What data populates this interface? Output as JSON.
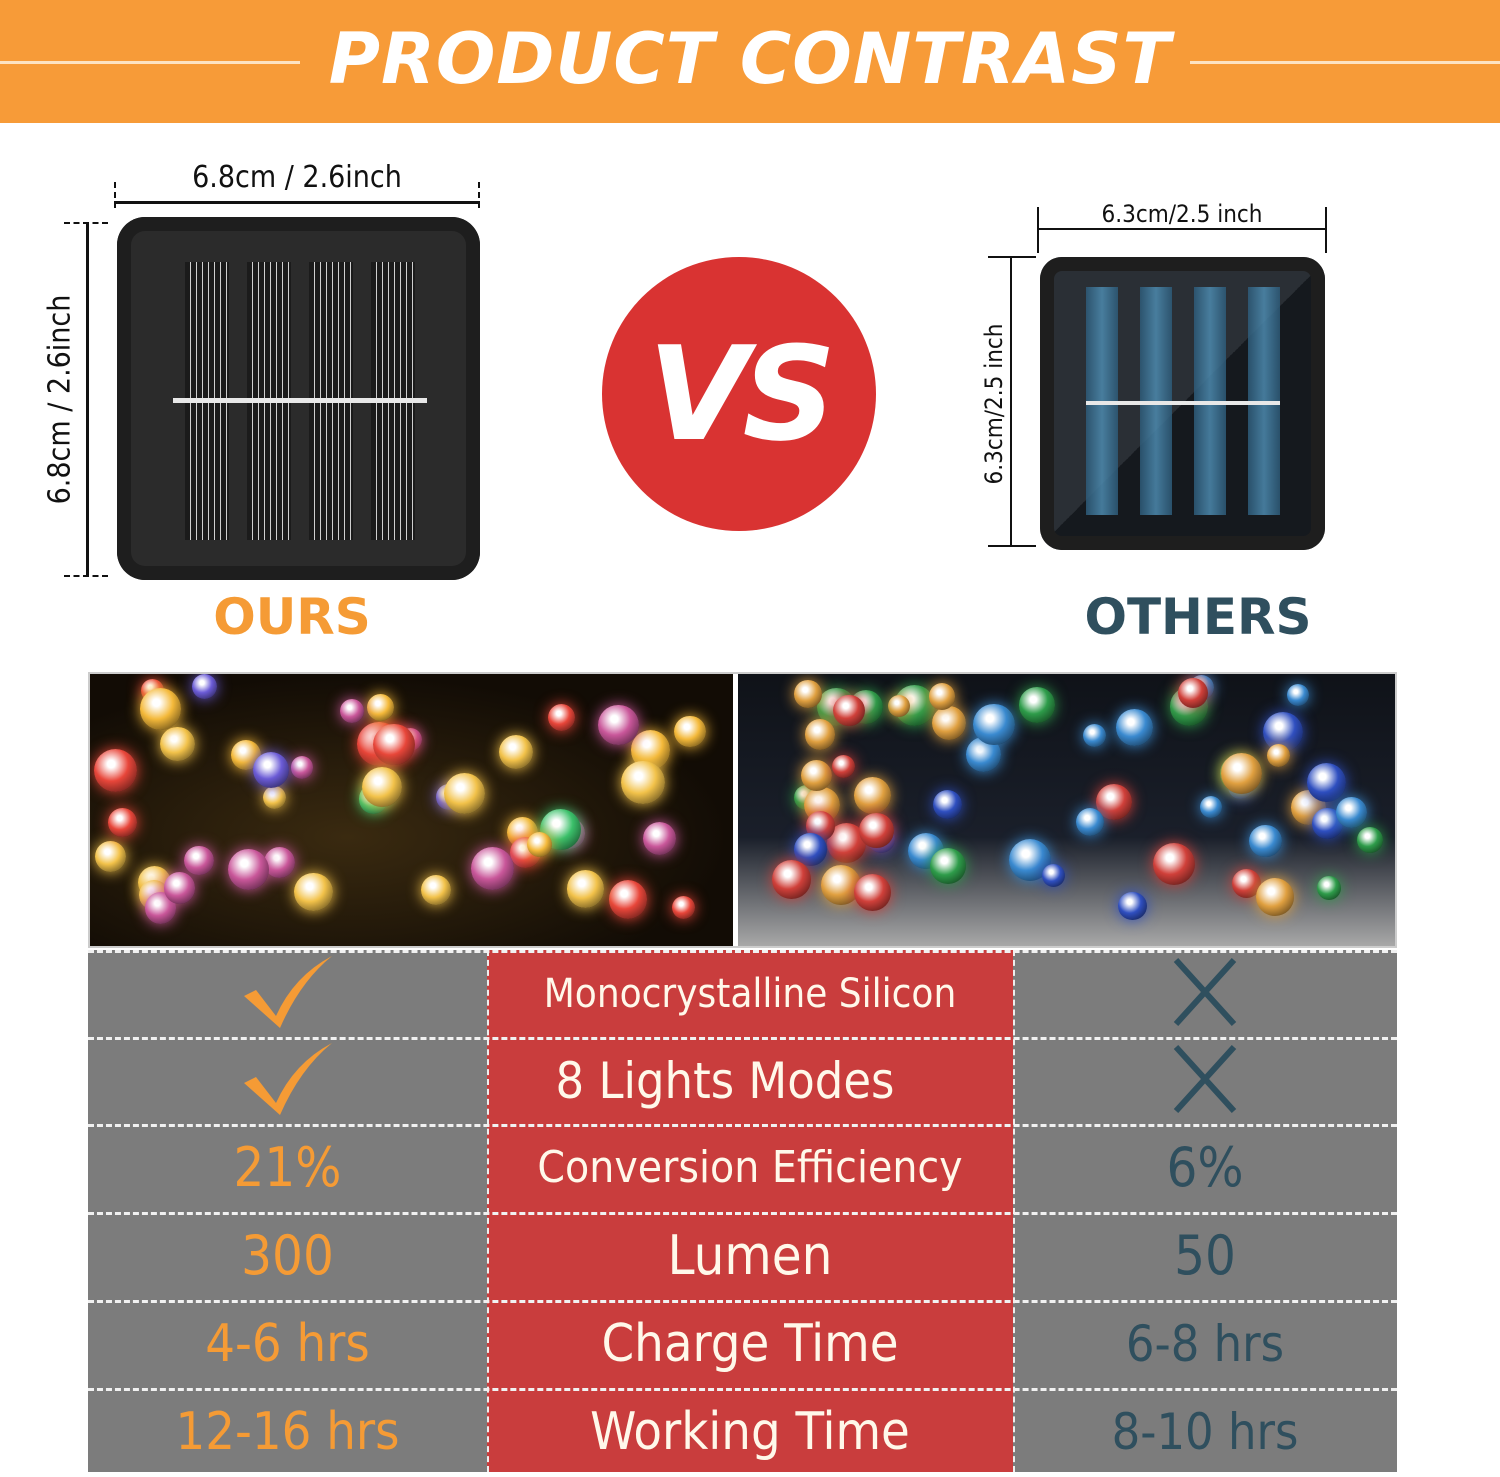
{
  "header": {
    "title": "PRODUCT CONTRAST"
  },
  "ours": {
    "label": "OURS",
    "width_dimension": "6.8cm / 2.6inch",
    "height_dimension": "6.8cm / 2.6inch"
  },
  "vs": "VS",
  "others": {
    "label": "OTHERS",
    "width_dimension": "6.3cm/2.5 inch",
    "height_dimension": "6.3cm/2.5 inch"
  },
  "colors": {
    "accent_orange": "#f79b38",
    "vs_red": "#d93332",
    "others_teal": "#2f4f5e",
    "table_gray": "#7c7c7c",
    "table_red": "#c93d3d"
  },
  "table": {
    "rows": [
      {
        "ours": "",
        "ours_icon": "check-icon",
        "feature": "Monocrystalline Silicon",
        "others": "",
        "others_icon": "x-icon"
      },
      {
        "ours": "",
        "ours_icon": "check-icon",
        "feature": "8 Lights Modes",
        "others": "",
        "others_icon": "x-icon"
      },
      {
        "ours": "21%",
        "feature": "Conversion Efficiency",
        "others": "6%"
      },
      {
        "ours": "300",
        "feature": "Lumen",
        "others": "50"
      },
      {
        "ours": "4-6 hrs",
        "feature": "Charge Time",
        "others": "6-8 hrs"
      },
      {
        "ours": "12-16 hrs",
        "feature": "Working Time",
        "others": "8-10 hrs"
      }
    ]
  }
}
